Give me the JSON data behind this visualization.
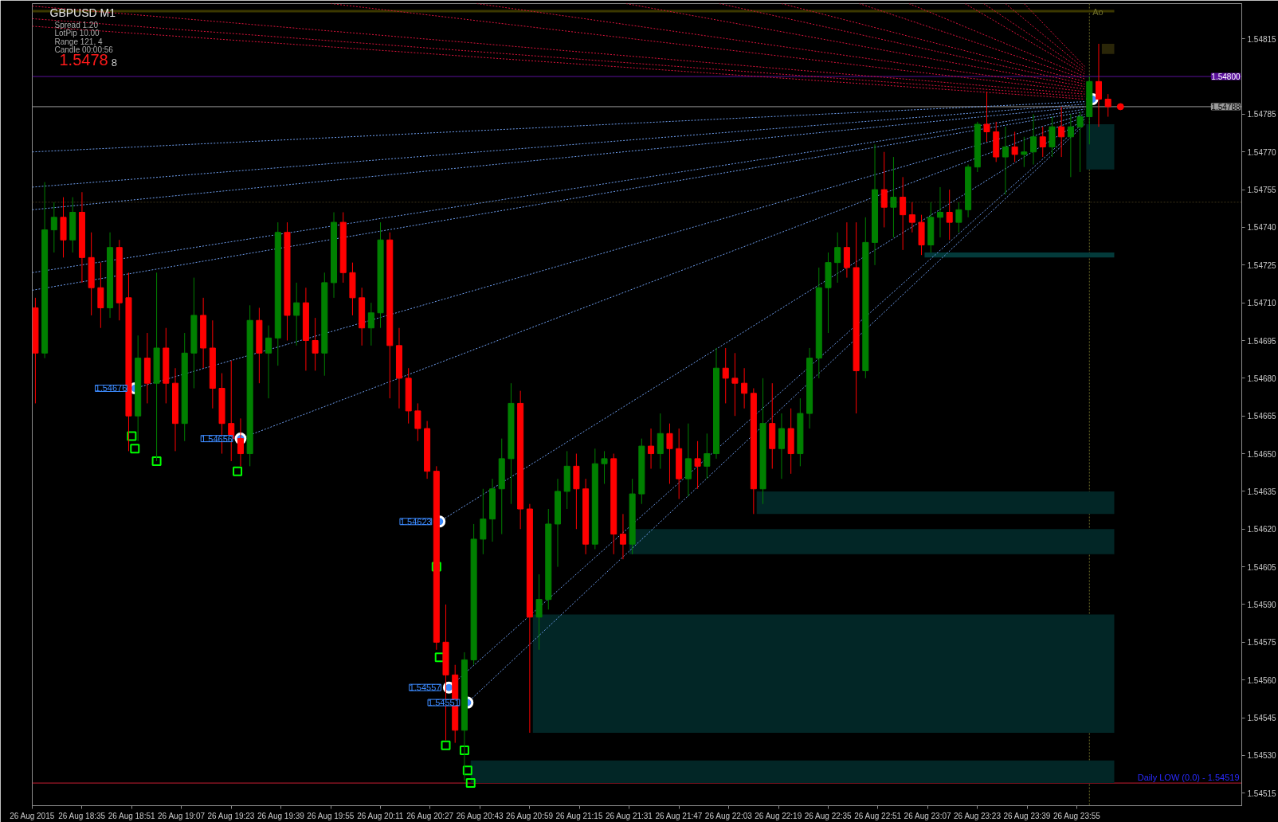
{
  "chart_data": {
    "type": "candlestick",
    "title": "GBPUSD M1",
    "x": [
      "2015-08-26T18:20",
      "2015-08-26T18:23",
      "2015-08-26T18:26",
      "2015-08-26T18:29",
      "2015-08-26T18:32",
      "2015-08-26T18:35",
      "2015-08-26T18:38",
      "2015-08-26T18:41",
      "2015-08-26T18:44",
      "2015-08-26T18:47",
      "2015-08-26T18:50",
      "2015-08-26T18:53",
      "2015-08-26T18:56",
      "2015-08-26T18:59",
      "2015-08-26T19:02",
      "2015-08-26T19:05",
      "2015-08-26T19:08",
      "2015-08-26T19:11",
      "2015-08-26T19:14",
      "2015-08-26T19:17",
      "2015-08-26T19:20",
      "2015-08-26T19:23",
      "2015-08-26T19:26",
      "2015-08-26T19:29",
      "2015-08-26T19:32",
      "2015-08-26T19:35",
      "2015-08-26T19:38",
      "2015-08-26T19:41",
      "2015-08-26T19:44",
      "2015-08-26T19:47",
      "2015-08-26T19:50",
      "2015-08-26T19:53",
      "2015-08-26T19:56",
      "2015-08-26T19:59",
      "2015-08-26T20:02",
      "2015-08-26T20:05",
      "2015-08-26T20:08",
      "2015-08-26T20:11",
      "2015-08-26T20:14",
      "2015-08-26T20:17",
      "2015-08-26T20:20",
      "2015-08-26T20:23",
      "2015-08-26T20:26",
      "2015-08-26T20:29",
      "2015-08-26T20:32",
      "2015-08-26T20:35",
      "2015-08-26T20:38",
      "2015-08-26T20:41",
      "2015-08-26T20:44",
      "2015-08-26T20:47",
      "2015-08-26T20:50",
      "2015-08-26T20:53",
      "2015-08-26T20:56",
      "2015-08-26T20:59",
      "2015-08-26T21:02",
      "2015-08-26T21:05",
      "2015-08-26T21:08",
      "2015-08-26T21:11",
      "2015-08-26T21:14",
      "2015-08-26T21:17",
      "2015-08-26T21:20",
      "2015-08-26T21:23",
      "2015-08-26T21:26",
      "2015-08-26T21:29",
      "2015-08-26T21:32",
      "2015-08-26T21:35",
      "2015-08-26T21:38",
      "2015-08-26T21:41",
      "2015-08-26T21:44",
      "2015-08-26T21:47",
      "2015-08-26T21:50",
      "2015-08-26T21:53",
      "2015-08-26T21:56",
      "2015-08-26T21:59",
      "2015-08-26T22:02",
      "2015-08-26T22:05",
      "2015-08-26T22:08",
      "2015-08-26T22:11",
      "2015-08-26T22:14",
      "2015-08-26T22:17",
      "2015-08-26T22:20",
      "2015-08-26T22:23",
      "2015-08-26T22:26",
      "2015-08-26T22:29",
      "2015-08-26T22:32",
      "2015-08-26T22:35",
      "2015-08-26T22:38",
      "2015-08-26T22:41",
      "2015-08-26T22:44",
      "2015-08-26T22:47",
      "2015-08-26T22:50",
      "2015-08-26T22:53",
      "2015-08-26T22:56",
      "2015-08-26T22:59",
      "2015-08-26T23:02",
      "2015-08-26T23:05",
      "2015-08-26T23:08",
      "2015-08-26T23:11",
      "2015-08-26T23:14",
      "2015-08-26T23:17",
      "2015-08-26T23:20",
      "2015-08-26T23:23",
      "2015-08-26T23:26",
      "2015-08-26T23:29",
      "2015-08-26T23:32",
      "2015-08-26T23:35",
      "2015-08-26T23:38",
      "2015-08-26T23:41",
      "2015-08-26T23:44",
      "2015-08-26T23:47",
      "2015-08-26T23:50",
      "2015-08-26T23:53",
      "2015-08-26T23:56",
      "2015-08-26T23:59",
      "2015-08-27T00:02",
      "2015-08-27T00:05"
    ],
    "ohlc": [
      [
        1.54708,
        1.54712,
        1.5467,
        1.5469
      ],
      [
        1.5469,
        1.54758,
        1.54688,
        1.54739
      ],
      [
        1.54739,
        1.5475,
        1.5473,
        1.54744
      ],
      [
        1.54744,
        1.54752,
        1.54728,
        1.54735
      ],
      [
        1.54735,
        1.54752,
        1.5473,
        1.54746
      ],
      [
        1.54746,
        1.54754,
        1.54718,
        1.54728
      ],
      [
        1.54728,
        1.54738,
        1.54705,
        1.54716
      ],
      [
        1.54716,
        1.54726,
        1.547,
        1.54708
      ],
      [
        1.54708,
        1.54738,
        1.54704,
        1.54732
      ],
      [
        1.54732,
        1.54735,
        1.54703,
        1.5471
      ],
      [
        1.54712,
        1.54722,
        1.54651,
        1.54665
      ],
      [
        1.54665,
        1.54697,
        1.54655,
        1.54688
      ],
      [
        1.54688,
        1.54698,
        1.5467,
        1.54678
      ],
      [
        1.54678,
        1.54722,
        1.54647,
        1.54692
      ],
      [
        1.54692,
        1.547,
        1.5467,
        1.54678
      ],
      [
        1.54678,
        1.54684,
        1.54651,
        1.54662
      ],
      [
        1.54662,
        1.54698,
        1.54655,
        1.5469
      ],
      [
        1.5469,
        1.5472,
        1.54676,
        1.54705
      ],
      [
        1.54705,
        1.54712,
        1.54684,
        1.54692
      ],
      [
        1.54692,
        1.54703,
        1.54668,
        1.54676
      ],
      [
        1.54676,
        1.54682,
        1.5465,
        1.54662
      ],
      [
        1.54662,
        1.54687,
        1.54647,
        1.54656
      ],
      [
        1.54656,
        1.54664,
        1.54645,
        1.5465
      ],
      [
        1.5465,
        1.54709,
        1.54645,
        1.54703
      ],
      [
        1.54703,
        1.54708,
        1.54678,
        1.5469
      ],
      [
        1.5469,
        1.54701,
        1.54672,
        1.54696
      ],
      [
        1.54696,
        1.54742,
        1.54685,
        1.54738
      ],
      [
        1.54738,
        1.54742,
        1.54695,
        1.54705
      ],
      [
        1.54705,
        1.54718,
        1.54693,
        1.5471
      ],
      [
        1.5471,
        1.54716,
        1.54683,
        1.54695
      ],
      [
        1.54695,
        1.54704,
        1.54683,
        1.5469
      ],
      [
        1.5469,
        1.54722,
        1.54681,
        1.54718
      ],
      [
        1.54718,
        1.54746,
        1.54712,
        1.54742
      ],
      [
        1.54742,
        1.54746,
        1.54718,
        1.54722
      ],
      [
        1.54722,
        1.54726,
        1.54705,
        1.54712
      ],
      [
        1.54712,
        1.54716,
        1.54693,
        1.547
      ],
      [
        1.547,
        1.5471,
        1.54693,
        1.54706
      ],
      [
        1.54706,
        1.54742,
        1.547,
        1.54735
      ],
      [
        1.54735,
        1.54738,
        1.54672,
        1.54693
      ],
      [
        1.54693,
        1.547,
        1.54668,
        1.5468
      ],
      [
        1.5468,
        1.54684,
        1.54662,
        1.54667
      ],
      [
        1.54667,
        1.5467,
        1.54655,
        1.5466
      ],
      [
        1.5466,
        1.54663,
        1.5464,
        1.54643
      ],
      [
        1.54643,
        1.54645,
        1.54572,
        1.54575
      ],
      [
        1.54575,
        1.5459,
        1.54536,
        1.54562
      ],
      [
        1.54562,
        1.54566,
        1.54535,
        1.5454
      ],
      [
        1.5454,
        1.54571,
        1.5452,
        1.54568
      ],
      [
        1.54568,
        1.54622,
        1.54566,
        1.54616
      ],
      [
        1.54616,
        1.54636,
        1.5461,
        1.54624
      ],
      [
        1.54624,
        1.5464,
        1.54615,
        1.54636
      ],
      [
        1.54636,
        1.54656,
        1.54618,
        1.54648
      ],
      [
        1.54648,
        1.54678,
        1.5463,
        1.5467
      ],
      [
        1.5467,
        1.54675,
        1.5462,
        1.54628
      ],
      [
        1.54628,
        1.5463,
        1.54539,
        1.54585
      ],
      [
        1.54585,
        1.54602,
        1.54572,
        1.54592
      ],
      [
        1.54592,
        1.54628,
        1.54588,
        1.54622
      ],
      [
        1.54622,
        1.5464,
        1.54605,
        1.54635
      ],
      [
        1.54635,
        1.54651,
        1.54628,
        1.54645
      ],
      [
        1.54645,
        1.5465,
        1.5462,
        1.54636
      ],
      [
        1.54636,
        1.5464,
        1.5461,
        1.54614
      ],
      [
        1.54614,
        1.54652,
        1.54612,
        1.54646
      ],
      [
        1.54646,
        1.54651,
        1.54638,
        1.54648
      ],
      [
        1.54648,
        1.5465,
        1.5461,
        1.54618
      ],
      [
        1.54618,
        1.54626,
        1.54608,
        1.54614
      ],
      [
        1.54614,
        1.5464,
        1.5461,
        1.54634
      ],
      [
        1.54634,
        1.54656,
        1.5463,
        1.54653
      ],
      [
        1.54653,
        1.5466,
        1.54644,
        1.5465
      ],
      [
        1.5465,
        1.54666,
        1.54644,
        1.54658
      ],
      [
        1.54658,
        1.54662,
        1.54638,
        1.54652
      ],
      [
        1.54652,
        1.5466,
        1.54632,
        1.5464
      ],
      [
        1.5464,
        1.54662,
        1.54633,
        1.54648
      ],
      [
        1.54648,
        1.54655,
        1.54636,
        1.54645
      ],
      [
        1.54645,
        1.54658,
        1.5464,
        1.5465
      ],
      [
        1.5465,
        1.54692,
        1.54648,
        1.54684
      ],
      [
        1.54684,
        1.54692,
        1.5467,
        1.5468
      ],
      [
        1.5468,
        1.5469,
        1.54665,
        1.54678
      ],
      [
        1.54678,
        1.54684,
        1.54668,
        1.54674
      ],
      [
        1.54674,
        1.54676,
        1.54626,
        1.54636
      ],
      [
        1.54636,
        1.5468,
        1.5463,
        1.54662
      ],
      [
        1.54662,
        1.54678,
        1.54644,
        1.54652
      ],
      [
        1.54652,
        1.54666,
        1.5464,
        1.5466
      ],
      [
        1.5466,
        1.54668,
        1.54642,
        1.5465
      ],
      [
        1.5465,
        1.54672,
        1.54645,
        1.54666
      ],
      [
        1.54666,
        1.54692,
        1.5466,
        1.54688
      ],
      [
        1.54688,
        1.54724,
        1.5468,
        1.54716
      ],
      [
        1.54716,
        1.5473,
        1.54698,
        1.54726
      ],
      [
        1.54726,
        1.54738,
        1.54718,
        1.54732
      ],
      [
        1.54732,
        1.54742,
        1.5472,
        1.54724
      ],
      [
        1.54724,
        1.54742,
        1.54666,
        1.54683
      ],
      [
        1.54683,
        1.54744,
        1.5468,
        1.54734
      ],
      [
        1.54734,
        1.54773,
        1.54725,
        1.54755
      ],
      [
        1.54755,
        1.5477,
        1.5474,
        1.54748
      ],
      [
        1.54748,
        1.54768,
        1.54736,
        1.54752
      ],
      [
        1.54752,
        1.5476,
        1.54731,
        1.54745
      ],
      [
        1.54745,
        1.5475,
        1.54738,
        1.54742
      ],
      [
        1.54742,
        1.54745,
        1.54729,
        1.54733
      ],
      [
        1.54733,
        1.5475,
        1.5473,
        1.54744
      ],
      [
        1.54744,
        1.54756,
        1.54736,
        1.54746
      ],
      [
        1.54746,
        1.54755,
        1.54735,
        1.54742
      ],
      [
        1.54742,
        1.5475,
        1.54738,
        1.54747
      ],
      [
        1.54747,
        1.54765,
        1.54744,
        1.54764
      ],
      [
        1.54764,
        1.54782,
        1.54762,
        1.54781
      ],
      [
        1.54781,
        1.54794,
        1.54774,
        1.54778
      ],
      [
        1.54778,
        1.54782,
        1.54766,
        1.54768
      ],
      [
        1.54768,
        1.5478,
        1.54753,
        1.54772
      ],
      [
        1.54772,
        1.54778,
        1.54766,
        1.54769
      ],
      [
        1.54769,
        1.54776,
        1.54764,
        1.5477
      ],
      [
        1.5477,
        1.54785,
        1.54765,
        1.54776
      ],
      [
        1.54776,
        1.5478,
        1.54768,
        1.54772
      ],
      [
        1.54772,
        1.54784,
        1.54768,
        1.5478
      ],
      [
        1.5478,
        1.54788,
        1.54768,
        1.54776
      ],
      [
        1.54776,
        1.54785,
        1.5476,
        1.5478
      ],
      [
        1.5478,
        1.54786,
        1.54762,
        1.54784
      ],
      [
        1.54784,
        1.548,
        1.54773,
        1.54798
      ],
      [
        1.54798,
        1.54813,
        1.5478,
        1.54791
      ],
      [
        1.54791,
        1.54793,
        1.54784,
        1.54788
      ]
    ],
    "colors": [
      "#ff0000",
      "#008000",
      "#008000",
      "#ff0000",
      "#008000",
      "#ff0000",
      "#ff0000",
      "#ff0000",
      "#008000",
      "#ff0000",
      "#ff0000",
      "#008000",
      "#ff0000",
      "#008000",
      "#ff0000",
      "#ff0000",
      "#008000",
      "#008000",
      "#ff0000",
      "#ff0000",
      "#ff0000",
      "#ff0000",
      "#ff0000",
      "#008000",
      "#ff0000",
      "#008000",
      "#008000",
      "#ff0000",
      "#008000",
      "#ff0000",
      "#ff0000",
      "#008000",
      "#008000",
      "#ff0000",
      "#ff0000",
      "#ff0000",
      "#008000",
      "#008000",
      "#ff0000",
      "#ff0000",
      "#ff0000",
      "#ff0000",
      "#ff0000",
      "#ff0000",
      "#ff0000",
      "#ff0000",
      "#008000",
      "#008000",
      "#008000",
      "#008000",
      "#008000",
      "#008000",
      "#ff0000",
      "#ff0000",
      "#008000",
      "#008000",
      "#008000",
      "#008000",
      "#ff0000",
      "#ff0000",
      "#008000",
      "#008000",
      "#ff0000",
      "#ff0000",
      "#008000",
      "#008000",
      "#ff0000",
      "#008000",
      "#ff0000",
      "#ff0000",
      "#008000",
      "#ff0000",
      "#008000",
      "#008000",
      "#ff0000",
      "#ff0000",
      "#ff0000",
      "#ff0000",
      "#008000",
      "#ff0000",
      "#008000",
      "#ff0000",
      "#008000",
      "#008000",
      "#008000",
      "#008000",
      "#008000",
      "#ff0000",
      "#ff0000",
      "#008000",
      "#008000",
      "#ff0000",
      "#008000",
      "#ff0000",
      "#ff0000",
      "#ff0000",
      "#008000",
      "#008000",
      "#ff0000",
      "#008000",
      "#008000",
      "#008000",
      "#ff0000",
      "#ff0000",
      "#008000",
      "#ff0000",
      "#008000",
      "#008000",
      "#ff0000",
      "#008000",
      "#ff0000",
      "#008000",
      "#008000",
      "#008000",
      "#ff0000",
      "#ff0000"
    ],
    "xlim": [
      "2015-08-26T18:19",
      "2015-08-27T00:48"
    ],
    "xticks": [
      {
        "value": "2015-08-26T18:19",
        "label": "26 Aug 2015"
      },
      {
        "value": "2015-08-26T18:35",
        "label": "26 Aug 18:35"
      },
      {
        "value": "2015-08-26T18:51",
        "label": "26 Aug 18:51"
      },
      {
        "value": "2015-08-26T19:07",
        "label": "26 Aug 19:07"
      },
      {
        "value": "2015-08-26T19:23",
        "label": "26 Aug 19:23"
      },
      {
        "value": "2015-08-26T19:39",
        "label": "26 Aug 19:39"
      },
      {
        "value": "2015-08-26T19:55",
        "label": "26 Aug 19:55"
      },
      {
        "value": "2015-08-26T20:11",
        "label": "26 Aug 20:11"
      },
      {
        "value": "2015-08-26T20:27",
        "label": "26 Aug 20:27"
      },
      {
        "value": "2015-08-26T20:43",
        "label": "26 Aug 20:43"
      },
      {
        "value": "2015-08-26T20:59",
        "label": "26 Aug 20:59"
      },
      {
        "value": "2015-08-26T21:15",
        "label": "26 Aug 21:15"
      },
      {
        "value": "2015-08-26T21:31",
        "label": "26 Aug 21:31"
      },
      {
        "value": "2015-08-26T21:47",
        "label": "26 Aug 21:47"
      },
      {
        "value": "2015-08-26T22:03",
        "label": "26 Aug 22:03"
      },
      {
        "value": "2015-08-26T22:19",
        "label": "26 Aug 22:19"
      },
      {
        "value": "2015-08-26T22:35",
        "label": "26 Aug 22:35"
      },
      {
        "value": "2015-08-26T22:51",
        "label": "26 Aug 22:51"
      },
      {
        "value": "2015-08-26T23:07",
        "label": "26 Aug 23:07"
      },
      {
        "value": "2015-08-26T23:23",
        "label": "26 Aug 23:23"
      },
      {
        "value": "2015-08-26T23:39",
        "label": "26 Aug 23:39"
      },
      {
        "value": "2015-08-26T23:55",
        "label": "26 Aug 23:55"
      }
    ],
    "ylim": [
      1.5451,
      1.54829
    ],
    "yticks": [
      1.54515,
      {
        "value": 1.5453,
        "label": "1.54530"
      },
      1.54545,
      {
        "value": 1.5456,
        "label": "1.54560"
      },
      1.54575,
      {
        "value": 1.5459,
        "label": "1.54590"
      },
      1.54605,
      {
        "value": 1.5462,
        "label": "1.54620"
      },
      1.54635,
      {
        "value": 1.5465,
        "label": "1.54650"
      },
      1.54665,
      {
        "value": 1.5468,
        "label": "1.54680"
      },
      1.54695,
      {
        "value": 1.5471,
        "label": "1.54710"
      },
      1.54725,
      {
        "value": 1.5474,
        "label": "1.54740"
      },
      1.54755,
      {
        "value": 1.5477,
        "label": "1.54770"
      },
      1.54785,
      1.54815
    ],
    "grid": false,
    "series": [
      {
        "type": "line",
        "color": "#022626",
        "x": [
          "2015-08-26T22:12",
          "2015-08-27T00:07"
        ],
        "values": [
          null,
          null
        ],
        "lower": [
          1.54626,
          1.54626
        ],
        "upper": [
          1.54635,
          1.54635
        ]
      },
      {
        "type": "line",
        "color": "#022626",
        "x": [
          "2015-08-26T21:31",
          "2015-08-27T00:07"
        ],
        "values": [
          null,
          null
        ],
        "lower": [
          1.5461,
          1.5461
        ],
        "upper": [
          1.5462,
          1.5462
        ]
      },
      {
        "type": "line",
        "color": "#022626",
        "x": [
          "2015-08-26T21:00",
          "2015-08-27T00:07"
        ],
        "values": [
          null,
          null
        ],
        "lower": [
          1.54539,
          1.54539
        ],
        "upper": [
          1.54586,
          1.54586
        ]
      },
      {
        "type": "line",
        "color": "#022626",
        "x": [
          "2015-08-26T20:40",
          "2015-08-27T00:07"
        ],
        "values": [
          null,
          null
        ],
        "lower": [
          1.54519,
          1.54519
        ],
        "upper": [
          1.54528,
          1.54528
        ]
      },
      {
        "type": "line",
        "color": "#022626",
        "x": [
          "2015-08-26T23:58",
          "2015-08-27T00:07"
        ],
        "values": [
          null,
          null
        ],
        "lower": [
          1.54763,
          1.54763
        ],
        "upper": [
          1.54781,
          1.54781
        ]
      },
      {
        "type": "line",
        "color": "#033a3a",
        "x": [
          "2015-08-26T23:06",
          "2015-08-27T00:07"
        ],
        "values": [
          null,
          null
        ],
        "lower": [
          1.54728,
          1.54728
        ],
        "upper": [
          1.5473,
          1.5473
        ]
      },
      {
        "type": "line",
        "color": "#2a2608",
        "x": [
          "2015-08-27T00:03",
          "2015-08-27T00:07"
        ],
        "values": [
          null,
          null
        ],
        "lower": [
          1.54809,
          1.54809
        ],
        "upper": [
          1.54813,
          1.54813
        ]
      },
      {
        "type": "line",
        "color": "#3c3800",
        "line_style": "solid",
        "x": [
          "2015-08-26T18:19",
          "2015-08-27T00:07"
        ],
        "values": [
          1.54826,
          1.54826
        ]
      },
      {
        "type": "line",
        "color": "#6f9ff0",
        "line_style": "dashed",
        "x": [
          "2015-08-26T18:19",
          "2015-08-26T23:57:30"
        ],
        "values": [
          1.5477,
          1.5479
        ]
      },
      {
        "type": "line",
        "color": "#6f9ff0",
        "line_style": "dashed",
        "x": [
          "2015-08-26T18:19",
          "2015-08-26T23:57:30"
        ],
        "values": [
          1.54756,
          1.54789
        ]
      },
      {
        "type": "line",
        "color": "#6f9ff0",
        "line_style": "dashed",
        "x": [
          "2015-08-26T18:19",
          "2015-08-26T23:57:30"
        ],
        "values": [
          1.54747,
          1.54788
        ]
      },
      {
        "type": "line",
        "color": "#6f9ff0",
        "line_style": "dashed",
        "x": [
          "2015-08-26T18:19",
          "2015-08-26T23:57:30"
        ],
        "values": [
          1.54722,
          1.54787
        ]
      },
      {
        "type": "line",
        "color": "#6f9ff0",
        "line_style": "dashed",
        "x": [
          "2015-08-26T18:19",
          "2015-08-26T23:57:30"
        ],
        "values": [
          1.54715,
          1.54786
        ]
      },
      {
        "type": "line",
        "color": "#6f9ff0",
        "line_style": "dashed",
        "x": [
          "2015-08-26T18:52",
          "2015-08-26T23:57:30"
        ],
        "values": [
          1.54676,
          1.54785
        ]
      },
      {
        "type": "line",
        "color": "#6f9ff0",
        "line_style": "dashed",
        "x": [
          "2015-08-26T19:26",
          "2015-08-26T23:57:30"
        ],
        "values": [
          1.54656,
          1.54784
        ]
      },
      {
        "type": "line",
        "color": "#6f9ff0",
        "line_style": "dashed",
        "x": [
          "2015-08-26T20:30",
          "2015-08-26T23:57:30"
        ],
        "values": [
          1.54623,
          1.54783
        ]
      },
      {
        "type": "line",
        "color": "#6f9ff0",
        "line_style": "dashed",
        "x": [
          "2015-08-26T20:33",
          "2015-08-26T23:57:30"
        ],
        "values": [
          1.54557,
          1.54782
        ]
      },
      {
        "type": "line",
        "color": "#6f9ff0",
        "line_style": "dashed",
        "x": [
          "2015-08-26T20:39",
          "2015-08-26T23:57:30"
        ],
        "values": [
          1.54551,
          1.54781
        ]
      },
      {
        "type": "line",
        "color": "#dc143c",
        "line_style": "dashed",
        "x": [
          "2015-08-26T18:19",
          "2015-08-26T23:57:30"
        ],
        "values": [
          1.54828,
          1.54793
        ]
      },
      {
        "type": "line",
        "color": "#dc143c",
        "line_style": "dashed",
        "x": [
          "2015-08-26T18:19",
          "2015-08-26T23:57:30"
        ],
        "values": [
          1.54823,
          1.54792
        ]
      },
      {
        "type": "line",
        "color": "#dc143c",
        "line_style": "dashed",
        "x": [
          "2015-08-26T18:19",
          "2015-08-26T23:57:30"
        ],
        "values": [
          1.5482,
          1.54791
        ]
      },
      {
        "type": "line",
        "color": "#dc143c",
        "line_style": "dashed",
        "x": [
          "2015-08-26T19:55",
          "2015-08-26T23:57:30"
        ],
        "values": [
          1.54829,
          1.54794
        ]
      },
      {
        "type": "line",
        "color": "#dc143c",
        "line_style": "dashed",
        "x": [
          "2015-08-26T20:42",
          "2015-08-26T23:57:30"
        ],
        "values": [
          1.54829,
          1.54795
        ]
      },
      {
        "type": "line",
        "color": "#dc143c",
        "line_style": "dashed",
        "x": [
          "2015-08-26T21:30",
          "2015-08-26T23:57:30"
        ],
        "values": [
          1.54829,
          1.54796
        ]
      },
      {
        "type": "line",
        "color": "#dc143c",
        "line_style": "dashed",
        "x": [
          "2015-08-26T22:00",
          "2015-08-26T23:57:30"
        ],
        "values": [
          1.54829,
          1.54797
        ]
      },
      {
        "type": "line",
        "color": "#dc143c",
        "line_style": "dashed",
        "x": [
          "2015-08-26T22:20",
          "2015-08-26T23:57:30"
        ],
        "values": [
          1.54829,
          1.54798
        ]
      },
      {
        "type": "line",
        "color": "#dc143c",
        "line_style": "dashed",
        "x": [
          "2015-08-26T22:45",
          "2015-08-26T23:57:30"
        ],
        "values": [
          1.54829,
          1.54799
        ]
      },
      {
        "type": "line",
        "color": "#dc143c",
        "line_style": "dashed",
        "x": [
          "2015-08-26T23:01",
          "2015-08-26T23:57:30"
        ],
        "values": [
          1.54829,
          1.548
        ]
      },
      {
        "type": "line",
        "color": "#dc143c",
        "line_style": "dashed",
        "x": [
          "2015-08-26T23:19",
          "2015-08-26T23:57:30"
        ],
        "values": [
          1.54829,
          1.54801
        ]
      },
      {
        "type": "line",
        "color": "#dc143c",
        "line_style": "dashed",
        "x": [
          "2015-08-26T23:25",
          "2015-08-26T23:57:30"
        ],
        "values": [
          1.54829,
          1.54802
        ]
      },
      {
        "type": "line",
        "color": "#dc143c",
        "line_style": "dashed",
        "x": [
          "2015-08-26T23:32",
          "2015-08-26T23:57:30"
        ],
        "values": [
          1.54829,
          1.54803
        ]
      },
      {
        "type": "line",
        "color": "#dc143c",
        "line_style": "dashed",
        "x": [
          "2015-08-26T23:38",
          "2015-08-26T23:57:30"
        ],
        "values": [
          1.54829,
          1.54804
        ]
      },
      {
        "type": "scatter",
        "marker": "square",
        "color": "#00ff00",
        "x": [
          "2015-08-26T18:51",
          "2015-08-26T18:52",
          "2015-08-26T18:59",
          "2015-08-26T19:25",
          "2015-08-26T20:29",
          "2015-08-26T20:30",
          "2015-08-26T20:32",
          "2015-08-26T20:38",
          "2015-08-26T20:39",
          "2015-08-26T20:40"
        ],
        "values": [
          1.54657,
          1.54652,
          1.54647,
          1.54643,
          1.54605,
          1.54569,
          1.54534,
          1.54532,
          1.54524,
          1.54519
        ]
      },
      {
        "type": "scatter",
        "marker": "circle",
        "color": "#ffffff",
        "x": [
          "2015-08-26T18:52",
          "2015-08-26T19:26",
          "2015-08-26T20:30",
          "2015-08-26T20:33",
          "2015-08-26T20:39",
          "2015-08-27T00:00"
        ],
        "values": [
          1.54676,
          1.54656,
          1.54623,
          1.54557,
          1.54551,
          1.54791
        ],
        "value_labels": [
          "1.54676",
          "1.54656",
          "1.54623",
          "1.54557",
          "1.54551",
          null
        ]
      },
      {
        "type": "scatter",
        "marker": "circle",
        "color": "#ff0000",
        "x": [
          "2015-08-27T00:09"
        ],
        "values": [
          1.54788
        ]
      }
    ],
    "ref_lines": [
      {
        "axis": "y",
        "value": 1.548,
        "label": "1.54800",
        "color": "#5a109c"
      },
      {
        "axis": "y",
        "value": 1.54788,
        "label": "1.54788",
        "color": "#9a9a9a"
      },
      {
        "axis": "y",
        "value": 1.5475,
        "color": "#3e3418",
        "line_style": "dashed"
      },
      {
        "axis": "y",
        "value": 1.54519,
        "color": "#c81e32"
      },
      {
        "axis": "x",
        "value": "2015-08-26T23:59",
        "label": "Ao",
        "color": "#6e6e2a",
        "line_style": "dashed"
      }
    ],
    "annotations": [
      "Spread 1.20",
      "LotPip 10.00",
      "Range 121, 4",
      "Candle 00:00:56",
      "1.5478",
      "8",
      {
        "text": "Daily LOW (0.0) - 1.54519",
        "x": "2015-08-27T00:48",
        "y": 1.54519
      }
    ]
  }
}
